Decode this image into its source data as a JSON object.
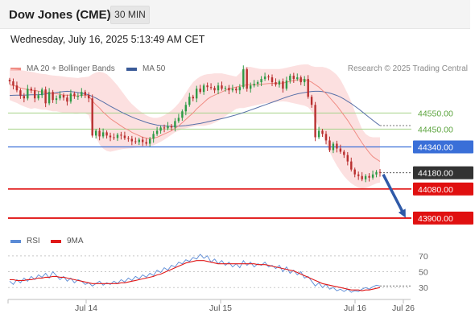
{
  "header": {
    "instrument": "Dow Jones (CME)",
    "timeframe": "30 MIN",
    "datetime": "Wednesday, July 16, 2025 5:13:49 AM CET"
  },
  "legend": {
    "ma20_label": "MA 20 + Bollinger Bands",
    "ma50_label": "MA 50",
    "credit": "Research © 2025 Trading Central",
    "rsi_label": "RSI",
    "ma9_label": "9MA"
  },
  "colors": {
    "ma20": "#f08c84",
    "bollinger_fill": "#fbd6d6",
    "ma50": "#5870a8",
    "candle_up": "#2e9b46",
    "candle_down": "#b92f2f",
    "resistance_line": "#a6d38a",
    "pivot_line": "#3a6fd8",
    "support_line": "#e01010",
    "last_price_tag": "#333333",
    "arrow": "#2f5aa8",
    "rsi": "#5b8bd6",
    "rsi_ma9": "#e01818"
  },
  "chart_data": [
    {
      "type": "candlestick",
      "title": "Dow Jones (CME)",
      "timeframe": "30 MIN",
      "x_labels": [
        "Jul 14",
        "Jul 15",
        "Jul 16",
        "Jul 26"
      ],
      "y_range": [
        43820,
        44900
      ],
      "close_series": [
        44745,
        44720,
        44690,
        44655,
        44640,
        44700,
        44690,
        44640,
        44660,
        44695,
        44610,
        44680,
        44630,
        44640,
        44660,
        44645,
        44620,
        44670,
        44655,
        44655,
        44680,
        44660,
        44640,
        44410,
        44440,
        44405,
        44430,
        44410,
        44400,
        44395,
        44415,
        44410,
        44395,
        44390,
        44375,
        44370,
        44385,
        44370,
        44360,
        44390,
        44420,
        44440,
        44460,
        44455,
        44470,
        44460,
        44500,
        44520,
        44560,
        44600,
        44650,
        44640,
        44700,
        44680,
        44720,
        44710,
        44705,
        44690,
        44720,
        44700,
        44705,
        44690,
        44700,
        44690,
        44710,
        44820,
        44700,
        44720,
        44730,
        44740,
        44760,
        44775,
        44770,
        44740,
        44725,
        44745,
        44700,
        44750,
        44780,
        44760,
        44770,
        44740,
        44760,
        44650,
        44600,
        44400,
        44440,
        44420,
        44380,
        44320,
        44360,
        44330,
        44310,
        44290,
        44250,
        44200,
        44170,
        44160,
        44140,
        44160,
        44150,
        44170,
        44185,
        44180
      ],
      "ma20_series": [
        44725,
        44720,
        44715,
        44705,
        44700,
        44695,
        44690,
        44690,
        44685,
        44680,
        44680,
        44675,
        44670,
        44670,
        44665,
        44660,
        44660,
        44660,
        44655,
        44655,
        44660,
        44660,
        44655,
        44625,
        44600,
        44580,
        44555,
        44535,
        44515,
        44500,
        44485,
        44470,
        44455,
        44445,
        44430,
        44420,
        44410,
        44400,
        44395,
        44390,
        44395,
        44400,
        44410,
        44420,
        44430,
        44440,
        44455,
        44470,
        44490,
        44510,
        44530,
        44550,
        44575,
        44595,
        44615,
        44635,
        44650,
        44660,
        44670,
        44680,
        44690,
        44700,
        44705,
        44710,
        44715,
        44720,
        44725,
        44725,
        44725,
        44725,
        44728,
        44730,
        44732,
        44733,
        44734,
        44735,
        44735,
        44740,
        44745,
        44750,
        44755,
        44755,
        44755,
        44750,
        44740,
        44725,
        44710,
        44690,
        44670,
        44645,
        44620,
        44595,
        44565,
        44535,
        44505,
        44470,
        44435,
        44400,
        44365,
        44335,
        44305,
        44280,
        44265,
        44250
      ],
      "bollinger_upper": [
        44820,
        44820,
        44818,
        44815,
        44812,
        44808,
        44805,
        44800,
        44795,
        44792,
        44790,
        44785,
        44782,
        44780,
        44778,
        44775,
        44772,
        44770,
        44768,
        44766,
        44770,
        44772,
        44775,
        44790,
        44800,
        44805,
        44800,
        44790,
        44770,
        44745,
        44720,
        44690,
        44660,
        44630,
        44605,
        44585,
        44565,
        44550,
        44535,
        44525,
        44520,
        44520,
        44525,
        44535,
        44550,
        44565,
        44585,
        44610,
        44640,
        44675,
        44710,
        44740,
        44760,
        44775,
        44785,
        44790,
        44792,
        44795,
        44795,
        44795,
        44790,
        44785,
        44780,
        44775,
        44795,
        44830,
        44835,
        44835,
        44830,
        44825,
        44822,
        44822,
        44822,
        44822,
        44822,
        44822,
        44825,
        44830,
        44835,
        44840,
        44845,
        44848,
        44850,
        44850,
        44840,
        44835,
        44835,
        44835,
        44830,
        44820,
        44805,
        44785,
        44755,
        44715,
        44670,
        44620,
        44560,
        44505,
        44450,
        44420,
        44405,
        44400,
        44400,
        44400
      ],
      "bollinger_lower": [
        44630,
        44620,
        44612,
        44600,
        44590,
        44582,
        44575,
        44580,
        44575,
        44570,
        44570,
        44565,
        44560,
        44560,
        44555,
        44550,
        44550,
        44550,
        44545,
        44545,
        44550,
        44548,
        44535,
        44460,
        44400,
        44355,
        44330,
        44315,
        44310,
        44315,
        44320,
        44325,
        44328,
        44330,
        44332,
        44335,
        44338,
        44340,
        44342,
        44345,
        44350,
        44360,
        44372,
        44385,
        44400,
        44415,
        44430,
        44440,
        44450,
        44455,
        44460,
        44465,
        44470,
        44470,
        44470,
        44475,
        44480,
        44490,
        44500,
        44515,
        44530,
        44545,
        44560,
        44575,
        44580,
        44580,
        44585,
        44590,
        44595,
        44600,
        44605,
        44610,
        44612,
        44615,
        44618,
        44620,
        44622,
        44620,
        44615,
        44610,
        44605,
        44600,
        44595,
        44585,
        44560,
        44510,
        44460,
        44410,
        44360,
        44310,
        44265,
        44225,
        44190,
        44160,
        44135,
        44115,
        44100,
        44090,
        44085,
        44088,
        44095,
        44105,
        44115,
        44120
      ],
      "ma50_series": [
        44658,
        44659,
        44660,
        44660,
        44660,
        44661,
        44662,
        44662,
        44663,
        44665,
        44668,
        44670,
        44673,
        44676,
        44680,
        44682,
        44684,
        44682,
        44680,
        44676,
        44672,
        44668,
        44662,
        44652,
        44642,
        44630,
        44618,
        44605,
        44592,
        44580,
        44568,
        44556,
        44545,
        44535,
        44525,
        44516,
        44508,
        44500,
        44492,
        44485,
        44480,
        44475,
        44472,
        44470,
        44468,
        44467,
        44467,
        44468,
        44470,
        44472,
        44475,
        44478,
        44482,
        44485,
        44490,
        44495,
        44500,
        44505,
        44510,
        44515,
        44520,
        44526,
        44532,
        44538,
        44545,
        44552,
        44560,
        44568,
        44576,
        44584,
        44592,
        44600,
        44608,
        44616,
        44624,
        44632,
        44640,
        44648,
        44655,
        44662,
        44668,
        44672,
        44676,
        44680,
        44683,
        44684,
        44684,
        44682,
        44678,
        44673,
        44666,
        44658,
        44648,
        44636,
        44622,
        44608,
        44592,
        44576,
        44558,
        44540,
        44522,
        44505,
        44488,
        44472
      ],
      "levels": [
        {
          "value": 44550.0,
          "label": "44550.00",
          "kind": "resistance"
        },
        {
          "value": 44450.0,
          "label": "44450.00",
          "kind": "resistance"
        },
        {
          "value": 44340.0,
          "label": "44340.00",
          "kind": "pivot"
        },
        {
          "value": 44180.0,
          "label": "44180.00",
          "kind": "last"
        },
        {
          "value": 44080.0,
          "label": "44080.00",
          "kind": "support"
        },
        {
          "value": 43900.0,
          "label": "43900.00",
          "kind": "support"
        }
      ],
      "projection": {
        "from": 44180.0,
        "to": 43900.0,
        "direction": "down"
      }
    },
    {
      "type": "line",
      "title": "RSI",
      "y_ticks": [
        70,
        50,
        30
      ],
      "y_range": [
        15,
        82
      ],
      "series": [
        {
          "name": "RSI",
          "values": [
            38,
            34,
            40,
            36,
            42,
            38,
            44,
            40,
            46,
            43,
            48,
            42,
            50,
            45,
            40,
            44,
            38,
            42,
            36,
            40,
            38,
            34,
            36,
            32,
            35,
            38,
            33,
            36,
            34,
            38,
            35,
            40,
            37,
            42,
            39,
            44,
            41,
            46,
            43,
            48,
            45,
            52,
            49,
            55,
            52,
            58,
            56,
            62,
            60,
            65,
            63,
            68,
            66,
            72,
            67,
            70,
            62,
            66,
            60,
            64,
            58,
            62,
            56,
            60,
            55,
            64,
            58,
            62,
            56,
            60,
            58,
            62,
            56,
            58,
            54,
            58,
            50,
            56,
            48,
            52,
            46,
            50,
            42,
            44,
            38,
            32,
            36,
            30,
            34,
            28,
            30,
            26,
            28,
            25,
            28,
            24,
            26,
            25,
            28,
            30,
            28,
            31,
            33,
            32
          ]
        },
        {
          "name": "9MA",
          "values": [
            40,
            40,
            39,
            39,
            39,
            40,
            40,
            41,
            42,
            42,
            43,
            43,
            44,
            44,
            43,
            43,
            42,
            41,
            40,
            39,
            38,
            37,
            36,
            35,
            35,
            35,
            35,
            35,
            35,
            35,
            35,
            36,
            36,
            37,
            38,
            39,
            40,
            41,
            42,
            43,
            44,
            46,
            47,
            49,
            51,
            53,
            55,
            57,
            59,
            61,
            62,
            63,
            64,
            64,
            64,
            63,
            62,
            61,
            60,
            60,
            60,
            60,
            60,
            60,
            60,
            60,
            60,
            60,
            60,
            59,
            59,
            59,
            58,
            57,
            56,
            55,
            54,
            53,
            52,
            51,
            49,
            47,
            45,
            43,
            41,
            39,
            37,
            35,
            34,
            33,
            32,
            31,
            30,
            29,
            28,
            27,
            27,
            27,
            26,
            27,
            27,
            28,
            29,
            30
          ]
        }
      ]
    }
  ]
}
